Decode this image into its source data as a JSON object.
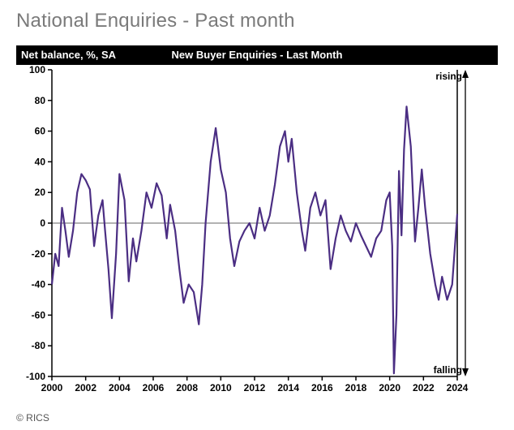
{
  "page_title": "National Enquiries - Past month",
  "title_bar": {
    "left_text": "Net balance, %, SA",
    "center_text": "New Buyer Enquiries - Last Month",
    "bg": "#000000",
    "fg": "#ffffff"
  },
  "credit": "© RICS",
  "chart": {
    "type": "line",
    "background": "#ffffff",
    "line_color": "#4b2e83",
    "line_width": 2.2,
    "zero_line_color": "#666666",
    "axis_color": "#000000",
    "tick_font_size": 12,
    "x": {
      "min": 2000,
      "max": 2024,
      "ticks": [
        2000,
        2002,
        2004,
        2006,
        2008,
        2010,
        2012,
        2014,
        2016,
        2018,
        2020,
        2022,
        2024
      ]
    },
    "y": {
      "min": -100,
      "max": 100,
      "ticks": [
        -100,
        -80,
        -60,
        -40,
        -20,
        0,
        20,
        40,
        60,
        80,
        100
      ]
    },
    "annotations": {
      "rising": {
        "text": "rising",
        "side": "right-top"
      },
      "falling": {
        "text": "falling",
        "side": "right-bottom"
      }
    },
    "series": [
      {
        "t": 2000.0,
        "v": -40
      },
      {
        "t": 2000.2,
        "v": -20
      },
      {
        "t": 2000.4,
        "v": -28
      },
      {
        "t": 2000.6,
        "v": 10
      },
      {
        "t": 2000.8,
        "v": -5
      },
      {
        "t": 2001.0,
        "v": -22
      },
      {
        "t": 2001.25,
        "v": -5
      },
      {
        "t": 2001.5,
        "v": 20
      },
      {
        "t": 2001.75,
        "v": 32
      },
      {
        "t": 2002.0,
        "v": 28
      },
      {
        "t": 2002.25,
        "v": 22
      },
      {
        "t": 2002.5,
        "v": -15
      },
      {
        "t": 2002.75,
        "v": 5
      },
      {
        "t": 2003.0,
        "v": 15
      },
      {
        "t": 2003.15,
        "v": -5
      },
      {
        "t": 2003.35,
        "v": -30
      },
      {
        "t": 2003.55,
        "v": -62
      },
      {
        "t": 2003.8,
        "v": -20
      },
      {
        "t": 2004.0,
        "v": 32
      },
      {
        "t": 2004.3,
        "v": 15
      },
      {
        "t": 2004.55,
        "v": -38
      },
      {
        "t": 2004.8,
        "v": -10
      },
      {
        "t": 2005.0,
        "v": -25
      },
      {
        "t": 2005.3,
        "v": -5
      },
      {
        "t": 2005.6,
        "v": 20
      },
      {
        "t": 2005.9,
        "v": 10
      },
      {
        "t": 2006.2,
        "v": 26
      },
      {
        "t": 2006.5,
        "v": 18
      },
      {
        "t": 2006.8,
        "v": -10
      },
      {
        "t": 2007.0,
        "v": 12
      },
      {
        "t": 2007.3,
        "v": -5
      },
      {
        "t": 2007.55,
        "v": -30
      },
      {
        "t": 2007.8,
        "v": -52
      },
      {
        "t": 2008.1,
        "v": -40
      },
      {
        "t": 2008.4,
        "v": -45
      },
      {
        "t": 2008.7,
        "v": -66
      },
      {
        "t": 2008.9,
        "v": -40
      },
      {
        "t": 2009.1,
        "v": 0
      },
      {
        "t": 2009.4,
        "v": 40
      },
      {
        "t": 2009.7,
        "v": 62
      },
      {
        "t": 2010.0,
        "v": 35
      },
      {
        "t": 2010.3,
        "v": 20
      },
      {
        "t": 2010.55,
        "v": -10
      },
      {
        "t": 2010.8,
        "v": -28
      },
      {
        "t": 2011.1,
        "v": -12
      },
      {
        "t": 2011.4,
        "v": -5
      },
      {
        "t": 2011.7,
        "v": 0
      },
      {
        "t": 2012.0,
        "v": -10
      },
      {
        "t": 2012.3,
        "v": 10
      },
      {
        "t": 2012.6,
        "v": -5
      },
      {
        "t": 2012.9,
        "v": 5
      },
      {
        "t": 2013.2,
        "v": 25
      },
      {
        "t": 2013.5,
        "v": 50
      },
      {
        "t": 2013.8,
        "v": 60
      },
      {
        "t": 2014.0,
        "v": 40
      },
      {
        "t": 2014.2,
        "v": 55
      },
      {
        "t": 2014.5,
        "v": 20
      },
      {
        "t": 2014.8,
        "v": -5
      },
      {
        "t": 2015.0,
        "v": -18
      },
      {
        "t": 2015.3,
        "v": 10
      },
      {
        "t": 2015.6,
        "v": 20
      },
      {
        "t": 2015.9,
        "v": 5
      },
      {
        "t": 2016.2,
        "v": 15
      },
      {
        "t": 2016.5,
        "v": -30
      },
      {
        "t": 2016.8,
        "v": -10
      },
      {
        "t": 2017.1,
        "v": 5
      },
      {
        "t": 2017.4,
        "v": -5
      },
      {
        "t": 2017.7,
        "v": -12
      },
      {
        "t": 2018.0,
        "v": 0
      },
      {
        "t": 2018.3,
        "v": -8
      },
      {
        "t": 2018.6,
        "v": -15
      },
      {
        "t": 2018.9,
        "v": -22
      },
      {
        "t": 2019.2,
        "v": -10
      },
      {
        "t": 2019.5,
        "v": -5
      },
      {
        "t": 2019.8,
        "v": 15
      },
      {
        "t": 2020.0,
        "v": 20
      },
      {
        "t": 2020.15,
        "v": -15
      },
      {
        "t": 2020.25,
        "v": -98
      },
      {
        "t": 2020.4,
        "v": -60
      },
      {
        "t": 2020.55,
        "v": 34
      },
      {
        "t": 2020.7,
        "v": -8
      },
      {
        "t": 2020.85,
        "v": 48
      },
      {
        "t": 2021.0,
        "v": 76
      },
      {
        "t": 2021.25,
        "v": 50
      },
      {
        "t": 2021.5,
        "v": -12
      },
      {
        "t": 2021.7,
        "v": 10
      },
      {
        "t": 2021.9,
        "v": 35
      },
      {
        "t": 2022.1,
        "v": 10
      },
      {
        "t": 2022.4,
        "v": -20
      },
      {
        "t": 2022.7,
        "v": -40
      },
      {
        "t": 2022.9,
        "v": -50
      },
      {
        "t": 2023.1,
        "v": -35
      },
      {
        "t": 2023.4,
        "v": -50
      },
      {
        "t": 2023.7,
        "v": -40
      },
      {
        "t": 2024.0,
        "v": 6
      }
    ]
  }
}
